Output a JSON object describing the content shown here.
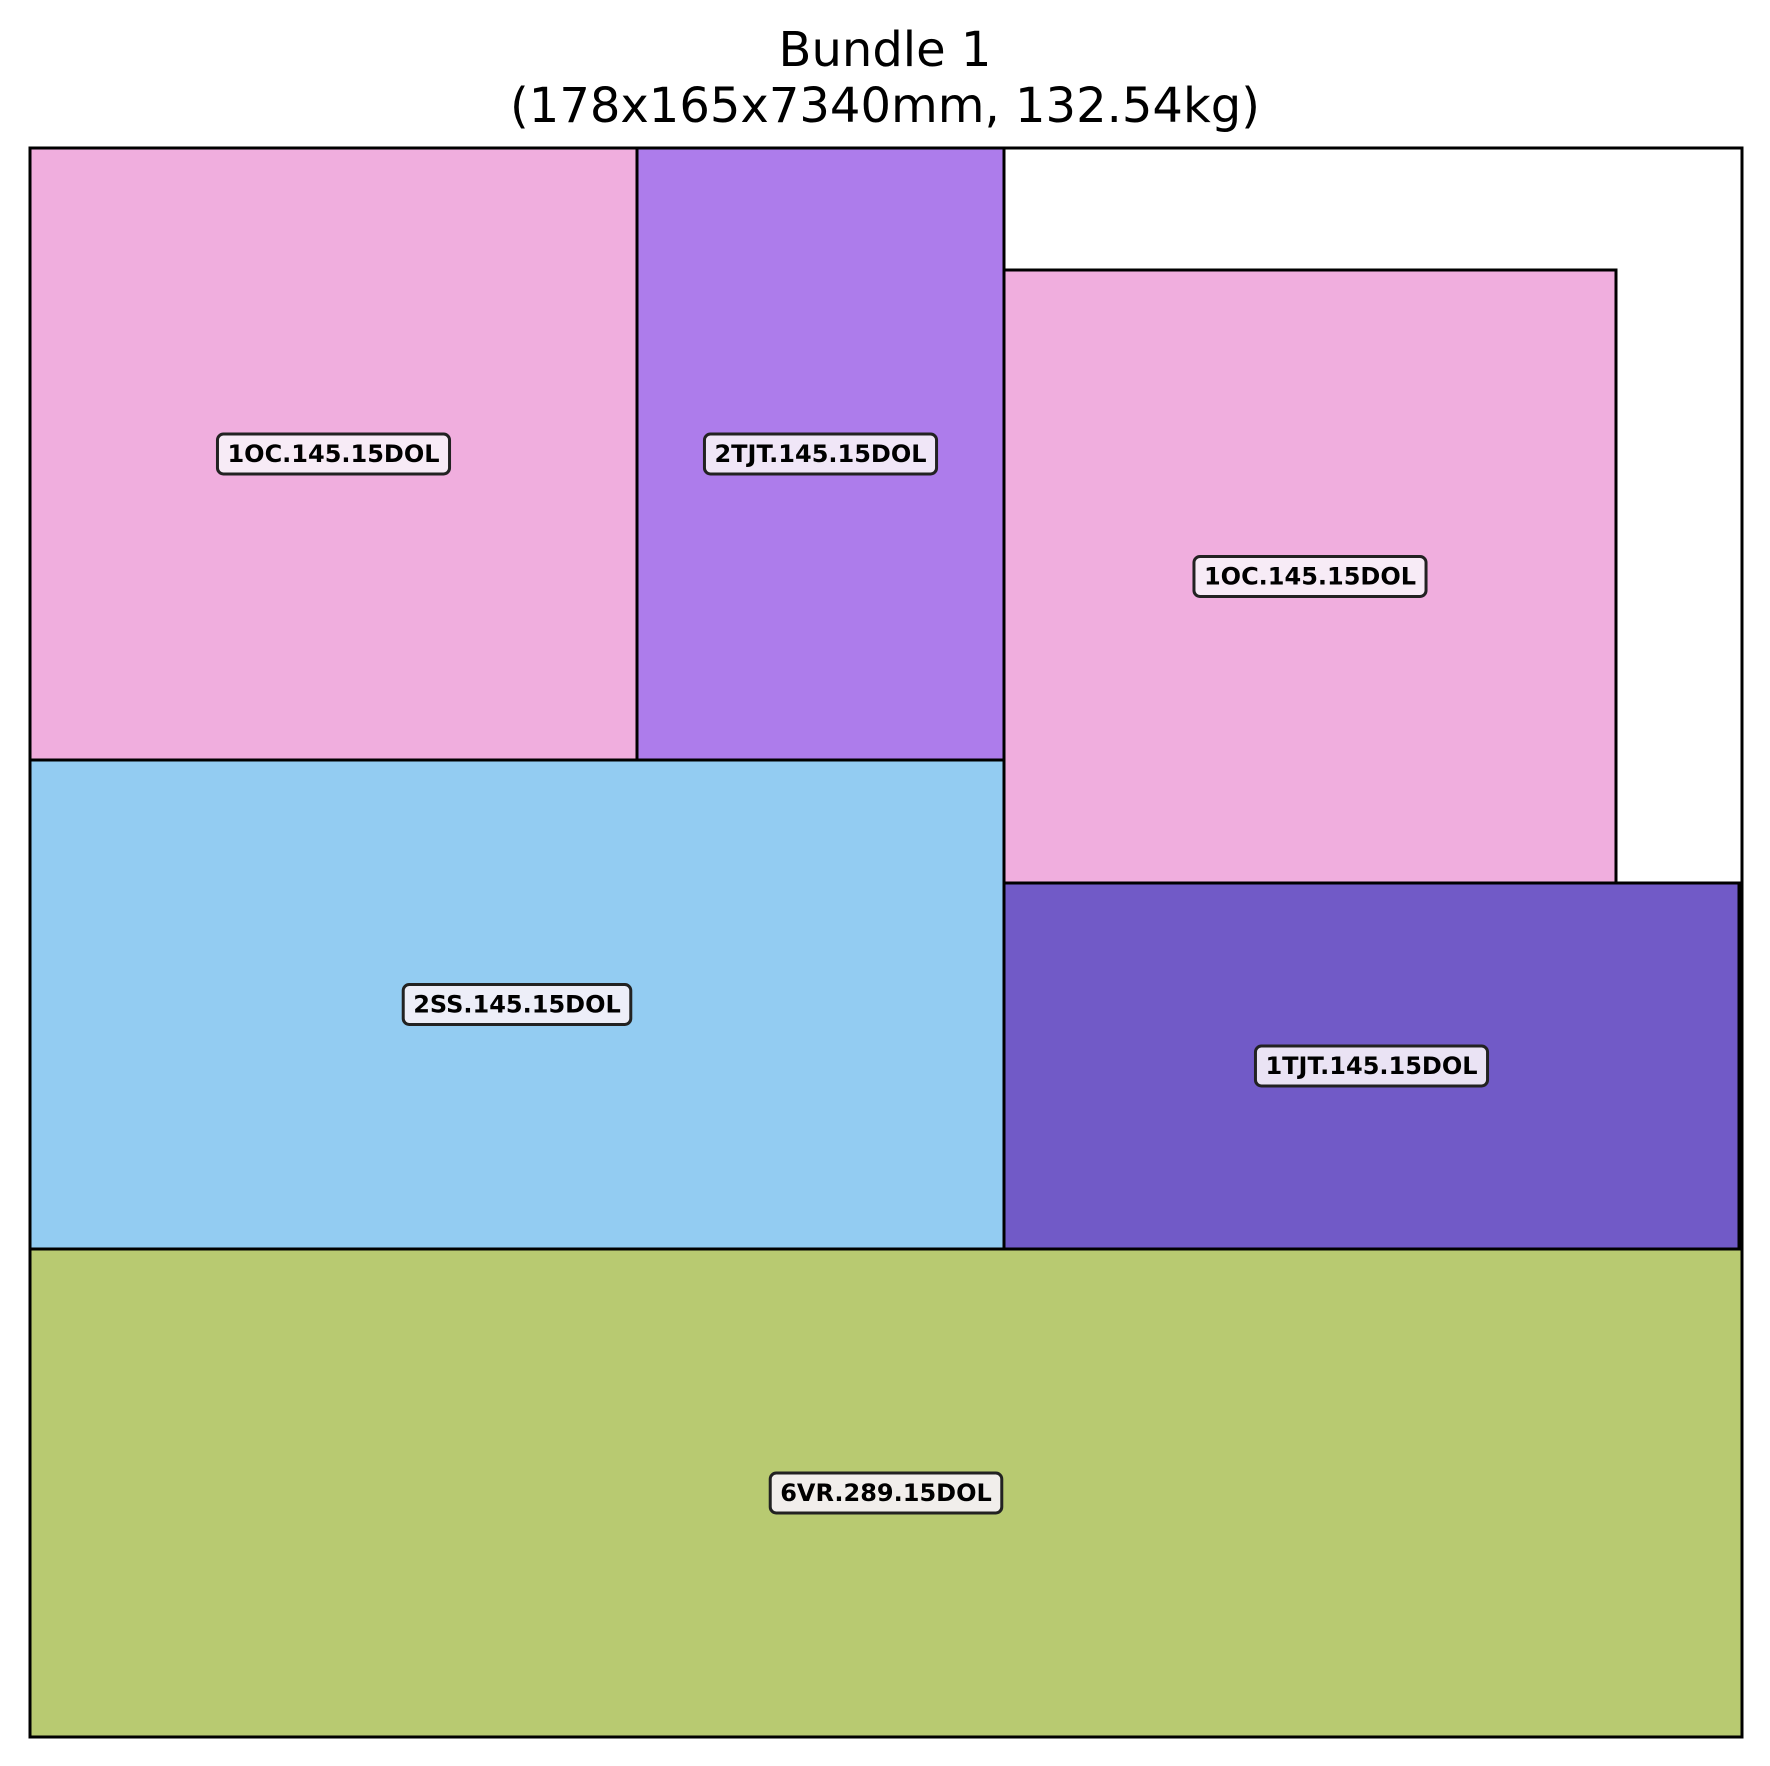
{
  "title": {
    "line1": "Bundle 1",
    "line2": "(178x165x7340mm, 132.54kg)"
  },
  "colors": {
    "pink": "#f0aede",
    "violet": "#ad7ceb",
    "sky": "#93ccf2",
    "indigo": "#715ac7",
    "olive": "#b8ca71",
    "label_bg": "#f7f2f8",
    "outline": "#000000"
  },
  "pieces": [
    {
      "id": "p1",
      "label": "1OC.145.15DOL",
      "color": "pink"
    },
    {
      "id": "p2",
      "label": "2TJT.145.15DOL",
      "color": "violet"
    },
    {
      "id": "p3",
      "label": "1OC.145.15DOL",
      "color": "pink"
    },
    {
      "id": "p4",
      "label": "2SS.145.15DOL",
      "color": "sky"
    },
    {
      "id": "p5",
      "label": "1TJT.145.15DOL",
      "color": "indigo"
    },
    {
      "id": "p6",
      "label": "6VR.289.15DOL",
      "color": "olive"
    }
  ]
}
